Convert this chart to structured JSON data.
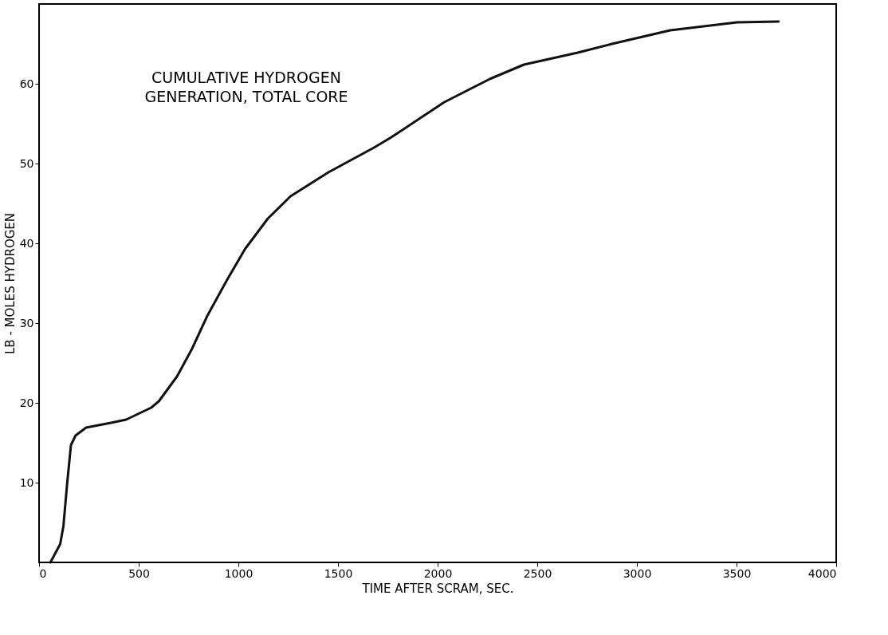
{
  "chart_data": {
    "type": "line",
    "xlabel": "TIME AFTER SCRAM, SEC.",
    "ylabel": "LB - MOLES HYDROGEN",
    "annotations": [
      "CUMULATIVE HYDROGEN\nGENERATION, TOTAL CORE"
    ],
    "x": [
      57,
      106,
      122,
      141,
      160,
      183,
      236,
      361,
      437,
      563,
      601,
      692,
      768,
      844,
      943,
      1034,
      1148,
      1262,
      1452,
      1681,
      1768,
      2034,
      2262,
      2433,
      2703,
      2875,
      3167,
      3502,
      3711
    ],
    "series": [
      {
        "color": "#111111",
        "values": [
          0,
          2.3,
          4.5,
          9.9,
          14.7,
          15.9,
          16.9,
          17.5,
          17.9,
          19.4,
          20.2,
          23.3,
          26.8,
          30.9,
          35.4,
          39.3,
          43.1,
          45.9,
          48.9,
          52.0,
          53.3,
          57.7,
          60.6,
          62.4,
          63.9,
          65.0,
          66.7,
          67.7,
          67.8
        ]
      }
    ],
    "xlim": [
      0,
      4000
    ],
    "xticks": [
      0,
      500,
      1000,
      1500,
      2000,
      2500,
      3000,
      3500,
      4000
    ],
    "ylim": [
      0,
      70
    ],
    "yticks": [
      10,
      20,
      30,
      40,
      50,
      60
    ],
    "grid": false,
    "marker": "none",
    "line_style": "solid"
  }
}
